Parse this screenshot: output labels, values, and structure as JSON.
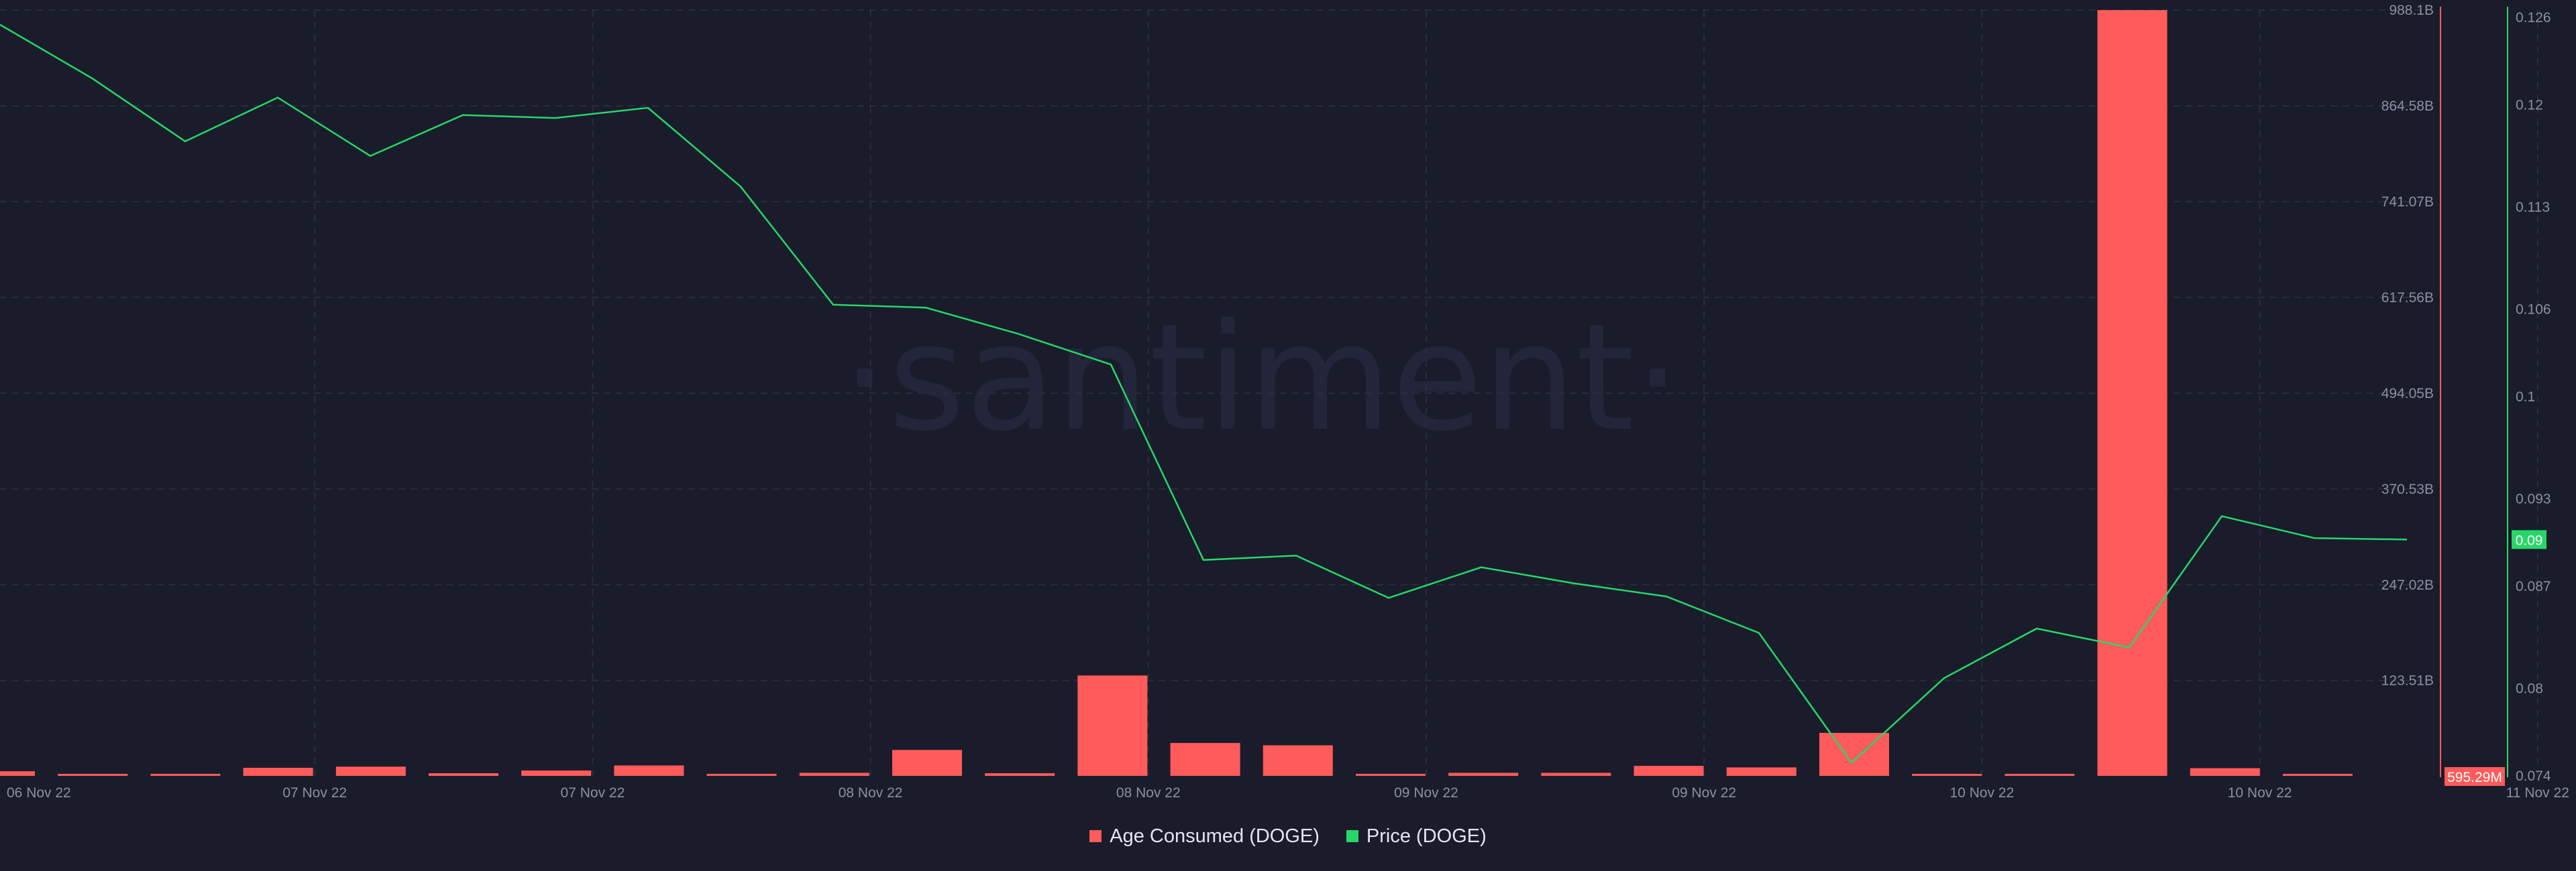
{
  "watermark": "·santiment·",
  "chart_data": {
    "type": "bar+line",
    "x_labels": [
      "06 Nov 22",
      "07 Nov 22",
      "07 Nov 22",
      "08 Nov 22",
      "08 Nov 22",
      "09 Nov 22",
      "09 Nov 22",
      "10 Nov 22",
      "10 Nov 22",
      "11 Nov 22"
    ],
    "y_left_ticks": [
      "988.1B",
      "864.58B",
      "741.07B",
      "617.56B",
      "494.05B",
      "370.53B",
      "247.02B",
      "123.51B"
    ],
    "y_left_min_label": "595.29M",
    "y_left_range": [
      0.595,
      988.1
    ],
    "y_right_ticks": [
      "0.126",
      "0.12",
      "0.113",
      "0.106",
      "0.1",
      "0.093",
      "0.087",
      "0.08",
      "0.074"
    ],
    "y_right_range": [
      0.074,
      0.1265
    ],
    "series": [
      {
        "name": "Age Consumed (DOGE)",
        "type": "bar",
        "axis": "left",
        "unit": "B",
        "color": "#ff5b5b",
        "values": [
          6.5,
          1.5,
          2.5,
          11,
          12.5,
          4,
          7.5,
          14,
          2,
          4.5,
          34,
          4,
          130,
          43,
          40,
          2.5,
          4.5,
          4.5,
          13.5,
          11.5,
          56,
          3,
          1,
          988,
          10.5,
          2.5
        ]
      },
      {
        "name": "Price (DOGE)",
        "type": "line",
        "axis": "right",
        "color": "#26d768",
        "values": [
          0.1255,
          0.1218,
          0.1175,
          0.1205,
          0.1165,
          0.1193,
          0.1191,
          0.1198,
          0.1144,
          0.1063,
          0.1061,
          0.1043,
          0.1022,
          0.0888,
          0.0891,
          0.0862,
          0.0883,
          0.0872,
          0.0863,
          0.0838,
          0.0749,
          0.0807,
          0.0841,
          0.0828,
          0.0918,
          0.0903,
          0.0902
        ],
        "last_value_label": "0.09"
      }
    ],
    "grid": true,
    "legend_position": "bottom-center"
  },
  "colors": {
    "background": "#1a1c2b",
    "bar": "#ff5b5b",
    "line": "#26d768",
    "grid": "#2a2d3e",
    "tick_text": "#8b8fa3"
  },
  "legend": [
    {
      "label": "Age Consumed (DOGE)",
      "color": "#ff5b5b"
    },
    {
      "label": "Price (DOGE)",
      "color": "#26d768"
    }
  ]
}
